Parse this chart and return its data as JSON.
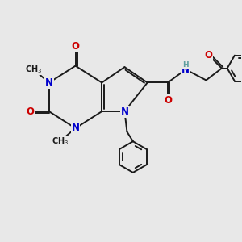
{
  "bg_color": "#e8e8e8",
  "bond_color": "#1a1a1a",
  "N_color": "#0000cc",
  "O_color": "#cc0000",
  "H_color": "#5f9ea0",
  "C_color": "#1a1a1a",
  "bond_width": 1.4,
  "font_size_atom": 8.5,
  "font_size_small": 7.0,
  "xlim": [
    0,
    10
  ],
  "ylim": [
    0,
    10
  ]
}
